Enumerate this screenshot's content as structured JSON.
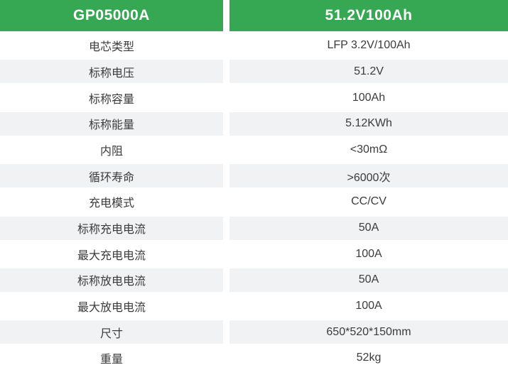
{
  "chart_data": {
    "type": "table",
    "columns": [
      "GP05000A",
      "51.2V100Ah"
    ],
    "rows": [
      [
        "电芯类型",
        "LFP 3.2V/100Ah"
      ],
      [
        "标称电压",
        "51.2V"
      ],
      [
        "标称容量",
        "100Ah"
      ],
      [
        "标称能量",
        "5.12KWh"
      ],
      [
        "内阻",
        "<30mΩ"
      ],
      [
        "循环寿命",
        ">6000次"
      ],
      [
        "充电模式",
        "CC/CV"
      ],
      [
        "标称充电电流",
        "50A"
      ],
      [
        "最大充电电流",
        "100A"
      ],
      [
        "标称放电电流",
        "50A"
      ],
      [
        "最大放电电流",
        "100A"
      ],
      [
        "尺寸",
        "650*520*150mm"
      ],
      [
        "重量",
        "52kg"
      ]
    ],
    "layout": {
      "header_position": "top",
      "alternating_row_shading": true,
      "shaded_row_indices": [
        1,
        3,
        5,
        7,
        9,
        11
      ]
    }
  },
  "colors": {
    "header_bg": "#36A853",
    "header_text": "#FFFFFF",
    "row_alt_bg": "#F1F2F4",
    "text": "#3B3B3B",
    "background": "#FFFFFF"
  }
}
